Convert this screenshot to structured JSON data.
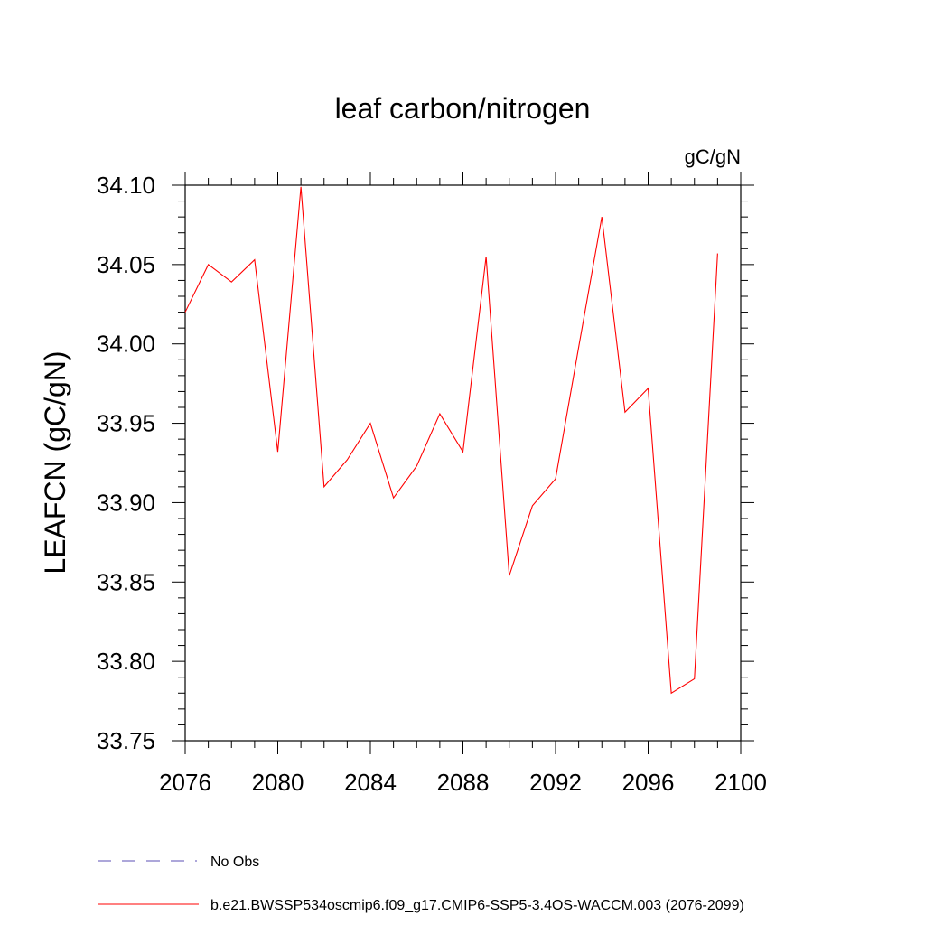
{
  "chart_data": {
    "type": "line",
    "title": "leaf carbon/nitrogen",
    "units": "gC/gN",
    "ylabel": "LEAFCN  (gC/gN)",
    "xlabel": "",
    "xlim": [
      2076,
      2100
    ],
    "ylim": [
      33.75,
      34.1
    ],
    "x_ticks": [
      2076,
      2080,
      2084,
      2088,
      2092,
      2096,
      2100
    ],
    "x_tick_labels": [
      "2076",
      "2080",
      "2084",
      "2088",
      "2092",
      "2096",
      "2100"
    ],
    "y_ticks": [
      33.75,
      33.8,
      33.85,
      33.9,
      33.95,
      34.0,
      34.05,
      34.1
    ],
    "y_tick_labels": [
      "33.75",
      "33.80",
      "33.85",
      "33.90",
      "33.95",
      "34.00",
      "34.05",
      "34.10"
    ],
    "series": [
      {
        "name": "b.e21.BWSSP534oscmip6.f09_g17.CMIP6-SSP5-3.4OS-WACCM.003 (2076-2099)",
        "color": "#ff0000",
        "dash": "solid",
        "x": [
          2076,
          2077,
          2078,
          2079,
          2080,
          2081,
          2082,
          2083,
          2084,
          2085,
          2086,
          2087,
          2088,
          2089,
          2090,
          2091,
          2092,
          2093,
          2094,
          2095,
          2096,
          2097,
          2098,
          2099
        ],
        "values": [
          34.02,
          34.05,
          34.039,
          34.053,
          33.932,
          34.099,
          33.91,
          33.927,
          33.95,
          33.903,
          33.923,
          33.956,
          33.932,
          34.055,
          33.854,
          33.898,
          33.915,
          33.998,
          34.08,
          33.957,
          33.972,
          33.78,
          33.789,
          34.057
        ]
      }
    ],
    "legend": [
      {
        "label": "No Obs",
        "color": "#5b4fb5",
        "dash": "dashed"
      },
      {
        "label": "b.e21.BWSSP534oscmip6.f09_g17.CMIP6-SSP5-3.4OS-WACCM.003 (2076-2099)",
        "color": "#ff0000",
        "dash": "solid"
      }
    ],
    "legend_position": "bottom-left"
  }
}
